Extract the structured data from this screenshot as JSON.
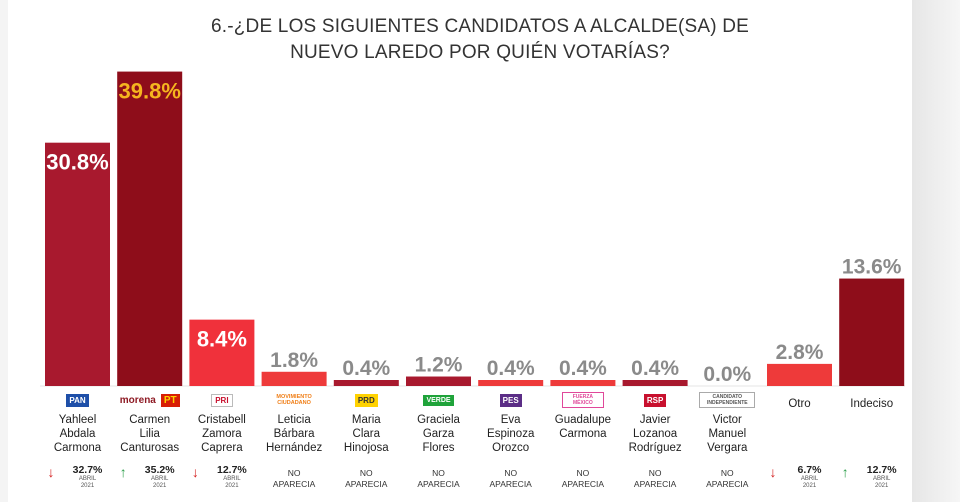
{
  "chart_data": {
    "type": "bar",
    "title": "6.-¿DE LOS SIGUIENTES CANDIDATOS A ALCALDE(SA) DE NUEVO LAREDO POR QUIÉN VOTARÍAS?",
    "categories": [
      "Yahleel Abdala Carmona",
      "Carmen Lilia Canturosas",
      "Cristabell Zamora Caprera",
      "Leticia Bárbara Hernández",
      "Maria Clara Hinojosa",
      "Graciela Garza Flores",
      "Eva Espinoza Orozco",
      "Guadalupe Carmona",
      "Javier Lozanoa Rodríguez",
      "Victor Manuel Vergara",
      "Otro",
      "Indeciso"
    ],
    "values": [
      30.8,
      39.8,
      8.4,
      1.8,
      0.4,
      1.2,
      0.4,
      0.4,
      0.4,
      0.0,
      2.8,
      13.6
    ],
    "value_labels": [
      "30.8%",
      "39.8%",
      "8.4%",
      "1.8%",
      "0.4%",
      "1.2%",
      "0.4%",
      "0.4%",
      "0.4%",
      "0.0%",
      "2.8%",
      "13.6%"
    ],
    "bar_colors": [
      "#a8192e",
      "#8e0d1a",
      "#f0313b",
      "#ee3a3a",
      "#a8192e",
      "#a8192e",
      "#ee3a3a",
      "#ee3a3a",
      "#a8192e",
      "#cfcfcf",
      "#ee3a3a",
      "#8e0d1a"
    ],
    "ylim": [
      0,
      40
    ],
    "grid": false,
    "legend": "none"
  },
  "candidates": [
    {
      "name_lines": [
        "Yahleel",
        "Abdala",
        "Carmona"
      ],
      "logo": "PAN",
      "logo_icon": "pan-logo-icon",
      "previous": {
        "kind": "trend",
        "direction": "down",
        "value": "32.7%",
        "sub": [
          "ABRIL",
          "2021"
        ]
      }
    },
    {
      "name_lines": [
        "Carmen",
        "Lilia",
        "Canturosas"
      ],
      "logo": "morena",
      "logo2": "PT",
      "logo_icon": "morena-pt-logo-icon",
      "previous": {
        "kind": "trend",
        "direction": "up",
        "value": "35.2%",
        "sub": [
          "ABRIL",
          "2021"
        ]
      }
    },
    {
      "name_lines": [
        "Cristabell",
        "Zamora",
        "Caprera"
      ],
      "logo": "PRI",
      "logo_icon": "pri-logo-icon",
      "previous": {
        "kind": "trend",
        "direction": "down",
        "value": "12.7%",
        "sub": [
          "ABRIL",
          "2021"
        ]
      }
    },
    {
      "name_lines": [
        "Leticia",
        "Bárbara",
        "Hernández"
      ],
      "logo": "MOVIMIENTO CIUDADANO",
      "logo_icon": "mc-logo-icon",
      "previous": {
        "kind": "none",
        "lines": [
          "NO",
          "APARECIA"
        ]
      }
    },
    {
      "name_lines": [
        "Maria",
        "Clara",
        "Hinojosa"
      ],
      "logo": "PRD",
      "logo_icon": "prd-logo-icon",
      "previous": {
        "kind": "none",
        "lines": [
          "NO",
          "APARECIA"
        ]
      }
    },
    {
      "name_lines": [
        "Graciela",
        "Garza",
        "Flores"
      ],
      "logo": "VERDE",
      "logo_icon": "verde-logo-icon",
      "previous": {
        "kind": "none",
        "lines": [
          "NO",
          "APARECIA"
        ]
      }
    },
    {
      "name_lines": [
        "Eva",
        "Espinoza",
        "Orozco"
      ],
      "logo": "PES",
      "logo_icon": "pes-logo-icon",
      "previous": {
        "kind": "none",
        "lines": [
          "NO",
          "APARECIA"
        ]
      }
    },
    {
      "name_lines": [
        "Guadalupe",
        "Carmona"
      ],
      "logo": "FUERZA MÉXICO",
      "logo_icon": "fuerza-mexico-logo-icon",
      "previous": {
        "kind": "none",
        "lines": [
          "NO",
          "APARECIA"
        ]
      }
    },
    {
      "name_lines": [
        "Javier",
        "Lozanoa",
        "Rodríguez"
      ],
      "logo": "RSP",
      "logo_icon": "rsp-logo-icon",
      "previous": {
        "kind": "none",
        "lines": [
          "NO",
          "APARECIA"
        ]
      }
    },
    {
      "name_lines": [
        "Victor",
        "Manuel",
        "Vergara"
      ],
      "logo": "CANDIDATO INDEPENDIENTE",
      "logo_icon": "independiente-logo-icon",
      "previous": {
        "kind": "none",
        "lines": [
          "NO",
          "APARECIA"
        ]
      }
    },
    {
      "name_lines": [
        "Otro"
      ],
      "logo": "",
      "logo_icon": "",
      "previous": {
        "kind": "trend",
        "direction": "down",
        "value": "6.7%",
        "sub": [
          "ABRIL",
          "2021"
        ]
      }
    },
    {
      "name_lines": [
        "Indeciso"
      ],
      "logo": "",
      "logo_icon": "",
      "previous": {
        "kind": "trend",
        "direction": "up",
        "value": "12.7%",
        "sub": [
          "ABRIL",
          "2021"
        ]
      }
    }
  ],
  "colors": {
    "dark_red": "#8e0d1a",
    "mid_red": "#a8192e",
    "bright_red": "#ee3a3a",
    "highlight_yellow": "#f5b51f",
    "value_gray": "#8a8a8a",
    "arrow_down": "#d42020",
    "arrow_up": "#2a9d48"
  }
}
